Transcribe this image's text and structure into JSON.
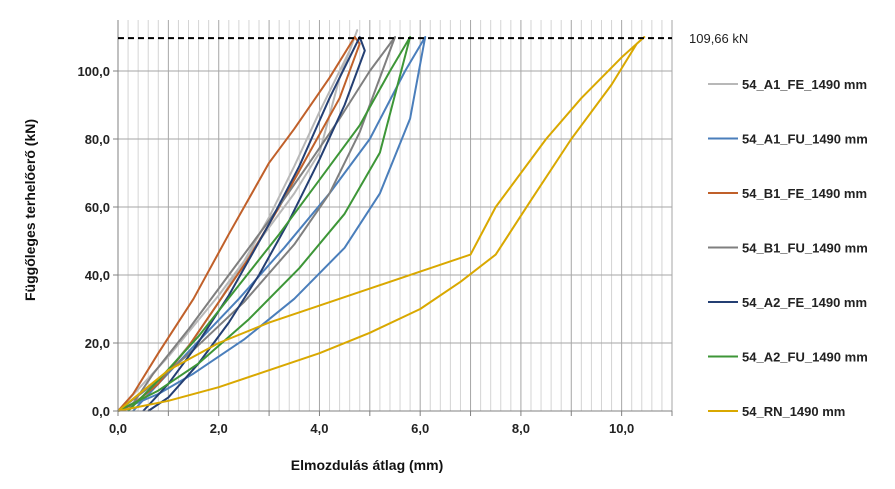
{
  "chart_data": {
    "type": "line",
    "title": "",
    "xlabel": "Elmozdulás átlag (mm)",
    "ylabel": "Függőleges terhelőerő (kN)",
    "xlim": [
      0,
      11
    ],
    "ylim": [
      0,
      115
    ],
    "x_ticks": [
      0,
      1,
      2,
      3,
      4,
      5,
      6,
      7,
      8,
      9,
      10,
      11
    ],
    "x_tick_labels": [
      "0,0",
      "",
      "2,0",
      "",
      "4,0",
      "",
      "6,0",
      "",
      "8,0",
      "",
      "10,0",
      ""
    ],
    "y_ticks": [
      0,
      20,
      40,
      60,
      80,
      100
    ],
    "y_tick_labels": [
      "0,0",
      "20,0",
      "40,0",
      "60,0",
      "80,0",
      "100,0"
    ],
    "minor_x_grid_step": 0.2,
    "grid": true,
    "legend_position": "right",
    "reference_line": {
      "y": 109.66,
      "label": "109,66 kN",
      "style": "dashed",
      "color": "#000000"
    },
    "series": [
      {
        "name": "54_A1_FE_1490 mm",
        "color": "#b8b8b8",
        "x": [
          0.0,
          0.5,
          1.0,
          1.5,
          2.0,
          2.5,
          3.0,
          3.5,
          4.0,
          4.4,
          4.75,
          4.6,
          4.0,
          3.5,
          3.0,
          2.5,
          2.0,
          1.5,
          1.0,
          0.5,
          0.0
        ],
        "y": [
          0,
          8,
          16,
          25,
          34,
          44,
          54,
          64,
          76,
          98,
          112,
          106,
          88,
          72,
          57,
          44,
          32,
          21,
          12,
          4,
          0
        ]
      },
      {
        "name": "54_A1_FU_1490 mm",
        "color": "#4a7ebb",
        "x": [
          0.0,
          0.8,
          1.5,
          2.5,
          3.5,
          4.5,
          5.2,
          5.8,
          6.1,
          5.7,
          5.0,
          4.2,
          3.3,
          2.4,
          1.5,
          0.8,
          0.3
        ],
        "y": [
          0,
          5,
          11,
          21,
          33,
          48,
          64,
          86,
          110,
          100,
          80,
          64,
          48,
          33,
          19,
          8,
          0
        ]
      },
      {
        "name": "54_B1_FE_1490 mm",
        "color": "#c0602a",
        "x": [
          0.0,
          0.3,
          0.8,
          1.5,
          2.2,
          3.0,
          3.5,
          4.2,
          4.7,
          4.8,
          4.4,
          3.8,
          3.2,
          2.6,
          2.0,
          1.4,
          0.8,
          0.3,
          0.0
        ],
        "y": [
          0,
          5,
          17,
          33,
          52,
          73,
          83,
          98,
          110,
          108,
          92,
          76,
          60,
          45,
          32,
          19,
          8,
          2,
          0
        ]
      },
      {
        "name": "54_B1_FU_1490 mm",
        "color": "#7f7f7f",
        "x": [
          0.0,
          0.8,
          1.5,
          2.5,
          3.5,
          4.2,
          4.8,
          5.5,
          5.0,
          4.4,
          3.8,
          3.0,
          2.2,
          1.4,
          0.7,
          0.2
        ],
        "y": [
          0,
          9,
          18,
          32,
          49,
          64,
          82,
          110,
          100,
          86,
          73,
          56,
          40,
          24,
          11,
          0
        ]
      },
      {
        "name": "54_A2_FE_1490 mm",
        "color": "#243f73",
        "x": [
          0.5,
          1.0,
          1.5,
          2.2,
          3.0,
          3.6,
          4.2,
          4.8,
          4.9,
          4.5,
          4.0,
          3.4,
          2.8,
          2.2,
          1.6,
          1.0,
          0.6
        ],
        "y": [
          0,
          8,
          18,
          34,
          55,
          72,
          92,
          110,
          106,
          90,
          74,
          56,
          40,
          26,
          14,
          4,
          0
        ]
      },
      {
        "name": "54_A2_FU_1490 mm",
        "color": "#3d9637",
        "x": [
          0.0,
          0.8,
          1.6,
          2.6,
          3.6,
          4.5,
          5.2,
          5.8,
          5.4,
          4.8,
          4.0,
          3.2,
          2.4,
          1.6,
          0.8,
          0.2
        ],
        "y": [
          0,
          6,
          14,
          27,
          42,
          58,
          76,
          110,
          100,
          84,
          68,
          52,
          37,
          22,
          9,
          0
        ]
      },
      {
        "name": "54_RN_1490 mm",
        "color": "#d9a800",
        "x": [
          0.0,
          1.0,
          2.0,
          3.0,
          4.0,
          5.0,
          6.0,
          6.8,
          7.5,
          8.2,
          9.0,
          9.8,
          10.3,
          10.45,
          10.0,
          9.2,
          8.5,
          7.5,
          7.0,
          6.0,
          5.0,
          4.0,
          3.0,
          2.0,
          1.0,
          0.0
        ],
        "y": [
          0,
          3,
          7,
          12,
          17,
          23,
          30,
          38,
          46,
          62,
          80,
          96,
          108,
          110,
          104,
          92,
          80,
          60,
          46,
          41,
          36,
          31,
          26,
          20,
          12,
          0
        ]
      }
    ]
  }
}
